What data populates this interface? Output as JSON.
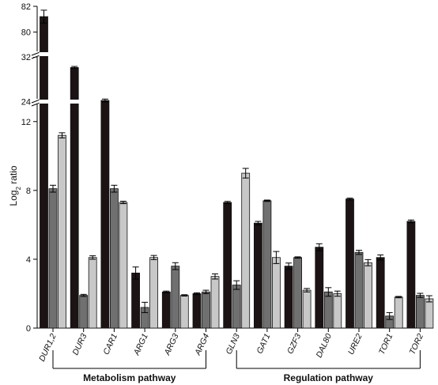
{
  "chart_data": {
    "type": "bar",
    "ylabel": "Log",
    "ylabel_subscript": "2",
    "ylabel_suffix": " ratio",
    "y_break_axis": true,
    "y_segments": [
      {
        "range": [
          0,
          13
        ],
        "ticks": [
          0,
          4,
          8,
          12
        ]
      },
      {
        "range": [
          23.5,
          33
        ],
        "ticks": [
          24,
          32
        ]
      },
      {
        "range": [
          78.5,
          82
        ],
        "ticks": [
          80,
          82
        ]
      }
    ],
    "categories": [
      "DUR1,2",
      "DUR3",
      "CAR1",
      "ARG1",
      "ARG3",
      "ARG4",
      "GLN3",
      "GAT1",
      "GZF3",
      "DAL80",
      "URE2",
      "TOR1",
      "TOR2"
    ],
    "series": [
      {
        "color": "#1c1414",
        "values": [
          81.2,
          30.1,
          24.2,
          3.2,
          2.1,
          2.0,
          7.3,
          6.1,
          3.6,
          4.7,
          7.5,
          4.1,
          6.2
        ],
        "errors": [
          0.5,
          0.2,
          0.25,
          0.35,
          0.05,
          0.05,
          0.06,
          0.1,
          0.18,
          0.2,
          0.05,
          0.15,
          0.08
        ]
      },
      {
        "color": "#707070",
        "values": [
          8.1,
          1.9,
          8.1,
          1.2,
          3.6,
          2.1,
          2.5,
          7.4,
          4.1,
          2.1,
          4.4,
          0.7,
          1.9
        ],
        "errors": [
          0.2,
          0.06,
          0.2,
          0.3,
          0.2,
          0.1,
          0.25,
          0.04,
          0.04,
          0.25,
          0.12,
          0.2,
          0.12
        ]
      },
      {
        "color": "#c8c8c8",
        "values": [
          11.2,
          4.1,
          7.3,
          4.1,
          1.9,
          3.0,
          9.0,
          4.1,
          2.2,
          2.0,
          3.8,
          1.8,
          1.7
        ],
        "errors": [
          0.15,
          0.1,
          0.07,
          0.12,
          0.04,
          0.15,
          0.28,
          0.35,
          0.1,
          0.15,
          0.18,
          0.04,
          0.18
        ]
      }
    ],
    "groups": [
      {
        "label": "Metabolism pathway",
        "from": 0,
        "to": 5
      },
      {
        "label": "Regulation pathway",
        "from": 6,
        "to": 12
      }
    ],
    "legend": "none",
    "grid": false
  }
}
